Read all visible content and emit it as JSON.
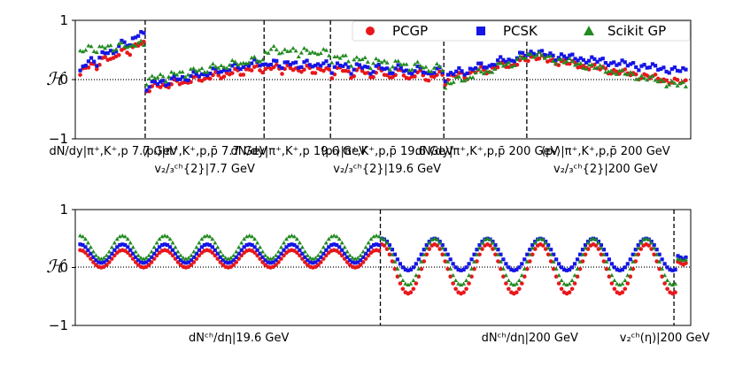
{
  "chart_data": [
    {
      "type": "scatter",
      "title": "",
      "ylabel": "ℋ",
      "ylim": [
        -1,
        1
      ],
      "yticks": [
        "−1",
        "0",
        "1"
      ],
      "n_points": 220,
      "separators_at_index": [
        24,
        67,
        91,
        132,
        162
      ],
      "group_labels": [
        {
          "at_index": 12,
          "lines": [
            "dN/dy|π⁺,K⁺,p 7.7 GeV"
          ]
        },
        {
          "at_index": 45,
          "lines": [
            "⟨pₜ⟩|π⁺,K⁺,p,p̄ 7.7 GeV",
            "v₂/₃ᶜʰ{2}|7.7 GeV"
          ]
        },
        {
          "at_index": 79,
          "lines": [
            "dN/dy|π⁺,K⁺,p 19.6 GeV"
          ]
        },
        {
          "at_index": 111,
          "lines": [
            "⟨pₜ⟩|π⁺,K⁺,p,p̄ 19.6 GeV",
            "v₂/₃ᶜʰ{2}|19.6 GeV"
          ]
        },
        {
          "at_index": 147,
          "lines": [
            "dN/dy|π⁺,K⁺,p,p̄ 200 GeV"
          ]
        },
        {
          "at_index": 190,
          "lines": [
            "⟨pₜ⟩|π⁺,K⁺,p,p̄ 200 GeV",
            "v₂/₃ᶜʰ{2}|200 GeV"
          ]
        }
      ],
      "legend_placement": "top-right",
      "series": [
        {
          "name": "PCGP",
          "marker": "circle",
          "color": "#e8171b",
          "segments": [
            {
              "from": 0,
              "to": 23,
              "start": 0.08,
              "end": 0.55,
              "amp": 0.1,
              "period": 6
            },
            {
              "from": 24,
              "to": 66,
              "start": -0.2,
              "end": 0.15,
              "amp": 0.08,
              "period": 7
            },
            {
              "from": 67,
              "to": 90,
              "start": 0.15,
              "end": 0.1,
              "amp": 0.08,
              "period": 6
            },
            {
              "from": 91,
              "to": 131,
              "start": 0.05,
              "end": -0.05,
              "amp": 0.15,
              "period": 7
            },
            {
              "from": 132,
              "to": 161,
              "start": -0.05,
              "end": 0.25,
              "amp": 0.1,
              "period": 8
            },
            {
              "from": 162,
              "to": 219,
              "start": 0.35,
              "end": -0.1,
              "amp": 0.06,
              "period": 10
            }
          ]
        },
        {
          "name": "PCSK",
          "marker": "square",
          "color": "#1515e6",
          "segments": [
            {
              "from": 0,
              "to": 23,
              "start": 0.12,
              "end": 0.7,
              "amp": 0.12,
              "period": 6
            },
            {
              "from": 24,
              "to": 66,
              "start": -0.15,
              "end": 0.25,
              "amp": 0.08,
              "period": 7
            },
            {
              "from": 67,
              "to": 90,
              "start": 0.22,
              "end": 0.2,
              "amp": 0.08,
              "period": 6
            },
            {
              "from": 91,
              "to": 131,
              "start": 0.15,
              "end": 0.05,
              "amp": 0.12,
              "period": 7
            },
            {
              "from": 132,
              "to": 161,
              "start": 0.0,
              "end": 0.35,
              "amp": 0.1,
              "period": 8
            },
            {
              "from": 162,
              "to": 219,
              "start": 0.42,
              "end": 0.1,
              "amp": 0.06,
              "period": 10
            }
          ]
        },
        {
          "name": "Scikit GP",
          "marker": "triangle",
          "color": "#238b22",
          "segments": [
            {
              "from": 0,
              "to": 23,
              "start": 0.45,
              "end": 0.55,
              "amp": 0.08,
              "period": 6
            },
            {
              "from": 24,
              "to": 66,
              "start": -0.05,
              "end": 0.3,
              "amp": 0.08,
              "period": 7
            },
            {
              "from": 67,
              "to": 90,
              "start": 0.45,
              "end": 0.4,
              "amp": 0.08,
              "period": 6
            },
            {
              "from": 91,
              "to": 131,
              "start": 0.3,
              "end": 0.1,
              "amp": 0.12,
              "period": 7
            },
            {
              "from": 132,
              "to": 161,
              "start": -0.15,
              "end": 0.3,
              "amp": 0.1,
              "period": 8
            },
            {
              "from": 162,
              "to": 219,
              "start": 0.4,
              "end": -0.15,
              "amp": 0.06,
              "period": 10
            }
          ]
        }
      ]
    },
    {
      "type": "scatter",
      "title": "",
      "ylabel": "ℋ",
      "ylim": [
        -1,
        1
      ],
      "yticks": [
        "−1",
        "0",
        "1"
      ],
      "n_points": 230,
      "separators_at_index": [
        114,
        225
      ],
      "group_labels": [
        {
          "at_index": 60,
          "lines": [
            "dNᶜʰ/dη|19.6 GeV"
          ]
        },
        {
          "at_index": 170,
          "lines": [
            "dNᶜʰ/dη|200 GeV"
          ]
        },
        {
          "at_index": 221,
          "lines": [
            "v₂ᶜʰ(η)|200 GeV"
          ]
        }
      ],
      "series": [
        {
          "name": "PCGP",
          "marker": "circle",
          "color": "#e8171b",
          "regions": [
            {
              "from": 0,
              "to": 113,
              "base": 0.0,
              "peak": 0.3,
              "period": 16
            },
            {
              "from": 114,
              "to": 225,
              "base": -0.45,
              "peak": 0.4,
              "period": 20
            },
            {
              "from": 226,
              "to": 229,
              "base": 0.05,
              "peak": 0.1,
              "period": 4
            }
          ]
        },
        {
          "name": "PCSK",
          "marker": "square",
          "color": "#1515e6",
          "regions": [
            {
              "from": 0,
              "to": 113,
              "base": 0.08,
              "peak": 0.4,
              "period": 16
            },
            {
              "from": 114,
              "to": 225,
              "base": -0.05,
              "peak": 0.5,
              "period": 20
            },
            {
              "from": 226,
              "to": 229,
              "base": 0.15,
              "peak": 0.2,
              "period": 4
            }
          ]
        },
        {
          "name": "Scikit GP",
          "marker": "triangle",
          "color": "#238b22",
          "regions": [
            {
              "from": 0,
              "to": 113,
              "base": 0.15,
              "peak": 0.55,
              "period": 16
            },
            {
              "from": 114,
              "to": 225,
              "base": -0.3,
              "peak": 0.5,
              "period": 20
            },
            {
              "from": 226,
              "to": 229,
              "base": 0.12,
              "peak": 0.15,
              "period": 4
            }
          ]
        }
      ]
    }
  ]
}
